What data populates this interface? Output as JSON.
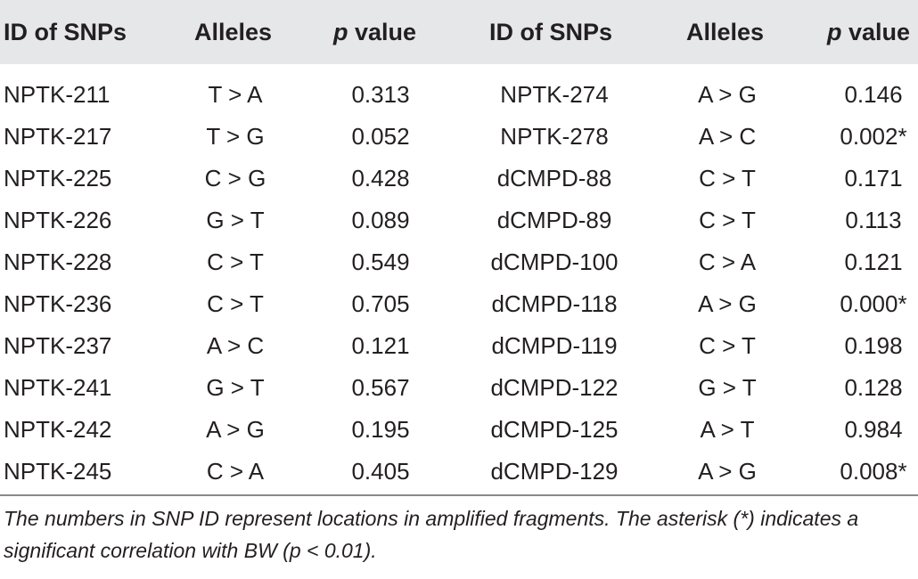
{
  "table": {
    "headers": [
      {
        "text": "ID of SNPs",
        "italic_prefix": "",
        "suffix": ""
      },
      {
        "text": "Alleles",
        "italic_prefix": "",
        "suffix": ""
      },
      {
        "text": "",
        "italic_prefix": "p",
        "suffix": " value"
      },
      {
        "text": "ID of SNPs",
        "italic_prefix": "",
        "suffix": ""
      },
      {
        "text": "Alleles",
        "italic_prefix": "",
        "suffix": ""
      },
      {
        "text": "",
        "italic_prefix": "p",
        "suffix": " value"
      }
    ],
    "rows": [
      [
        "NPTK-211",
        "T > A",
        "0.313",
        "NPTK-274",
        "A > G",
        "0.146"
      ],
      [
        "NPTK-217",
        "T > G",
        "0.052",
        "NPTK-278",
        "A > C",
        "0.002*"
      ],
      [
        "NPTK-225",
        "C > G",
        "0.428",
        "dCMPD-88",
        "C > T",
        "0.171"
      ],
      [
        "NPTK-226",
        "G > T",
        "0.089",
        "dCMPD-89",
        "C > T",
        "0.113"
      ],
      [
        "NPTK-228",
        "C > T",
        "0.549",
        "dCMPD-100",
        "C > A",
        "0.121"
      ],
      [
        "NPTK-236",
        "C > T",
        "0.705",
        "dCMPD-118",
        "A > G",
        "0.000*"
      ],
      [
        "NPTK-237",
        "A > C",
        "0.121",
        "dCMPD-119",
        "C > T",
        "0.198"
      ],
      [
        "NPTK-241",
        "G > T",
        "0.567",
        "dCMPD-122",
        "G > T",
        "0.128"
      ],
      [
        "NPTK-242",
        "A > G",
        "0.195",
        "dCMPD-125",
        "A > T",
        "0.984"
      ],
      [
        "NPTK-245",
        "C > A",
        "0.405",
        "dCMPD-129",
        "A > G",
        "0.008*"
      ]
    ],
    "footnote": "The numbers in SNP ID represent locations in amplified fragments. The asterisk (*) indicates a significant correlation with BW (p < 0.01)."
  },
  "colors": {
    "header_band": "#e6e7e9",
    "text": "#231f20",
    "rule": "#8a8a8a"
  }
}
